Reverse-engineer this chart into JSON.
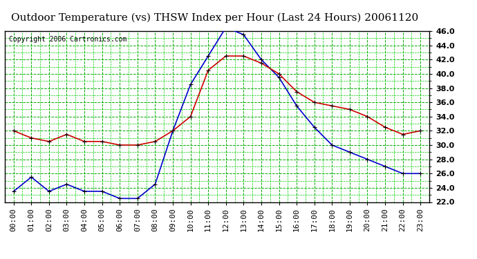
{
  "title": "Outdoor Temperature (vs) THSW Index per Hour (Last 24 Hours) 20061120",
  "copyright": "Copyright 2006 Cartronics.com",
  "hours": [
    0,
    1,
    2,
    3,
    4,
    5,
    6,
    7,
    8,
    9,
    10,
    11,
    12,
    13,
    14,
    15,
    16,
    17,
    18,
    19,
    20,
    21,
    22,
    23
  ],
  "temp_red": [
    32.0,
    31.0,
    30.5,
    31.5,
    30.5,
    30.5,
    30.0,
    30.0,
    30.5,
    32.0,
    34.0,
    40.5,
    42.5,
    42.5,
    41.5,
    40.0,
    37.5,
    36.0,
    35.5,
    35.0,
    34.0,
    32.5,
    31.5,
    32.0
  ],
  "thsw_blue": [
    23.5,
    25.5,
    23.5,
    24.5,
    23.5,
    23.5,
    22.5,
    22.5,
    24.5,
    32.0,
    38.5,
    42.5,
    46.5,
    45.5,
    42.0,
    39.5,
    35.5,
    32.5,
    30.0,
    29.0,
    28.0,
    27.0,
    26.0,
    26.0
  ],
  "ylim": [
    22.0,
    46.0
  ],
  "yticks": [
    22.0,
    24.0,
    26.0,
    28.0,
    30.0,
    32.0,
    34.0,
    36.0,
    38.0,
    40.0,
    42.0,
    44.0,
    46.0
  ],
  "bg_color": "#ffffff",
  "plot_bg_color": "#ffffff",
  "grid_color_major": "#00aa00",
  "grid_color_minor": "#00cc00",
  "red_color": "#cc0000",
  "blue_color": "#0000cc",
  "marker_color": "#000000",
  "title_fontsize": 11,
  "copyright_fontsize": 7,
  "tick_fontsize": 8
}
